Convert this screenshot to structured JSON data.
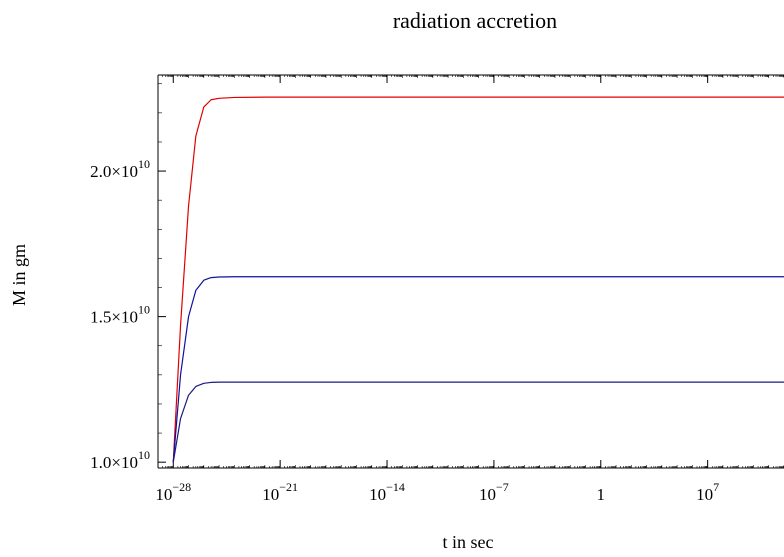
{
  "chart_data": {
    "type": "line",
    "title": "radiation accretion",
    "xlabel": "t in sec",
    "ylabel": "M in gm",
    "x_scale": "log10",
    "xlim": [
      1e-29,
      1000000000000.0
    ],
    "ylim": [
      9800000000.0,
      23300000000.0
    ],
    "x_ticks": [
      {
        "value": 1e-28,
        "label_base": "10",
        "label_exp": "−28"
      },
      {
        "value": 1e-21,
        "label_base": "10",
        "label_exp": "−21"
      },
      {
        "value": 1e-14,
        "label_base": "10",
        "label_exp": "−14"
      },
      {
        "value": 1e-07,
        "label_base": "10",
        "label_exp": "−7"
      },
      {
        "value": 1,
        "label_base": "1",
        "label_exp": ""
      },
      {
        "value": 10000000.0,
        "label_base": "10",
        "label_exp": "7"
      }
    ],
    "y_ticks": [
      {
        "value": 10000000000.0,
        "label_mant": "1.0×10",
        "label_exp": "10"
      },
      {
        "value": 15000000000.0,
        "label_mant": "1.5×10",
        "label_exp": "10"
      },
      {
        "value": 20000000000.0,
        "label_mant": "2.0×10",
        "label_exp": "10"
      }
    ],
    "series": [
      {
        "color": "#e00000",
        "x": [
          1e-28,
          3e-28,
          1e-27,
          3e-27,
          1e-26,
          3e-26,
          1e-25,
          1e-24,
          1e-22,
          1e-18,
          1e-10,
          1,
          10000000.0,
          1000000000000.0
        ],
        "y": [
          10000000000.0,
          14700000000.0,
          18800000000.0,
          21200000000.0,
          22200000000.0,
          22450000000.0,
          22500000000.0,
          22530000000.0,
          22540000000.0,
          22540000000.0,
          22540000000.0,
          22540000000.0,
          22540000000.0,
          22540000000.0
        ]
      },
      {
        "color": "#1010a0",
        "x": [
          1e-28,
          3e-28,
          1e-27,
          3e-27,
          1e-26,
          3e-26,
          1e-25,
          1e-24,
          1e-22,
          1e-18,
          1e-10,
          1,
          10000000.0,
          1000000000000.0
        ],
        "y": [
          10000000000.0,
          13000000000.0,
          15000000000.0,
          15900000000.0,
          16250000000.0,
          16340000000.0,
          16360000000.0,
          16370000000.0,
          16370000000.0,
          16370000000.0,
          16370000000.0,
          16370000000.0,
          16370000000.0,
          16370000000.0
        ]
      },
      {
        "color": "#1a1a80",
        "x": [
          1e-28,
          3e-28,
          1e-27,
          3e-27,
          1e-26,
          3e-26,
          1e-25,
          1e-24,
          1e-22,
          1e-18,
          1e-10,
          1,
          10000000.0,
          1000000000000.0
        ],
        "y": [
          10000000000.0,
          11500000000.0,
          12300000000.0,
          12600000000.0,
          12710000000.0,
          12740000000.0,
          12750000000.0,
          12750000000.0,
          12750000000.0,
          12750000000.0,
          12750000000.0,
          12750000000.0,
          12750000000.0,
          12750000000.0
        ]
      }
    ]
  }
}
